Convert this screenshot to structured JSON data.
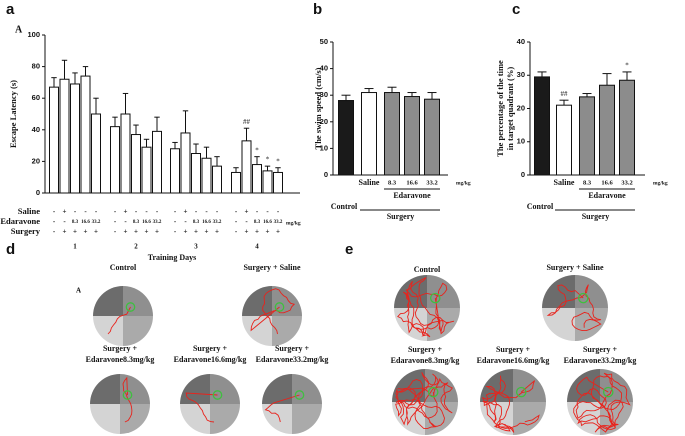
{
  "chart_data": [
    {
      "type": "grouped_bar",
      "panel_label": "a",
      "sub_label": "A",
      "ylabel": "Escape Latency (s)",
      "xlabel": "Training Days",
      "categories": [
        "1",
        "2",
        "3",
        "4"
      ],
      "ylim": [
        0,
        100
      ],
      "yticks": [
        0,
        20,
        40,
        60,
        80,
        100
      ],
      "condition_labels": [
        "Saline",
        "Edaravone",
        "Surgery"
      ],
      "unit": "mg/kg",
      "series": [
        {
          "color": "#ffffff",
          "conditions": [
            "-",
            "-",
            "-"
          ],
          "values": [
            67,
            42,
            28,
            13
          ],
          "errors": [
            6,
            6,
            4,
            3
          ],
          "annotations": [
            null,
            null,
            null,
            null
          ]
        },
        {
          "color": "#ffffff",
          "conditions": [
            "+",
            "-",
            "+"
          ],
          "values": [
            72,
            50,
            38,
            33
          ],
          "errors": [
            12,
            13,
            14,
            8
          ],
          "annotations": [
            null,
            null,
            null,
            "##"
          ]
        },
        {
          "color": "#ffffff",
          "conditions": [
            "-",
            "8.3",
            "+"
          ],
          "values": [
            69,
            37,
            25,
            18
          ],
          "errors": [
            7,
            6,
            6,
            5
          ],
          "annotations": [
            null,
            null,
            null,
            "*"
          ]
        },
        {
          "color": "#ffffff",
          "conditions": [
            "-",
            "16.6",
            "+"
          ],
          "values": [
            74,
            29,
            22,
            14
          ],
          "errors": [
            6,
            5,
            7,
            3
          ],
          "annotations": [
            null,
            null,
            null,
            "*"
          ]
        },
        {
          "color": "#ffffff",
          "conditions": [
            "-",
            "33.2",
            "+"
          ],
          "values": [
            50,
            39,
            17,
            13
          ],
          "errors": [
            10,
            9,
            6,
            3
          ],
          "annotations": [
            null,
            null,
            null,
            "*"
          ]
        }
      ]
    },
    {
      "type": "bar",
      "panel_label": "b",
      "ylabel": [
        "The swim speed (cm/s)"
      ],
      "categories": [
        "Control",
        "Saline",
        "8.3",
        "16.6",
        "33.2"
      ],
      "colors": [
        "#1a1a1a",
        "#ffffff",
        "#8c8c8c",
        "#8c8c8c",
        "#8c8c8c"
      ],
      "values": [
        28,
        31,
        31,
        29.5,
        28.5
      ],
      "errors": [
        2,
        1.5,
        2,
        1.5,
        2.5
      ],
      "annotations": [
        null,
        null,
        null,
        null,
        null
      ],
      "ylim": [
        0,
        50
      ],
      "yticks": [
        0,
        10,
        20,
        30,
        40,
        50
      ],
      "unit": "mg/kg",
      "group_labels": [
        "Edaravone",
        "Surgery"
      ]
    },
    {
      "type": "bar",
      "panel_label": "c",
      "ylabel": [
        "The percentage of the time",
        "in target quadrant (%)"
      ],
      "categories": [
        "Control",
        "Saline",
        "8.3",
        "16.6",
        "33.2"
      ],
      "colors": [
        "#1a1a1a",
        "#ffffff",
        "#8c8c8c",
        "#8c8c8c",
        "#8c8c8c"
      ],
      "values": [
        29.5,
        21,
        23.5,
        27,
        28.5
      ],
      "errors": [
        1.5,
        1.5,
        1,
        3.5,
        2.5
      ],
      "annotations": [
        null,
        "##",
        null,
        null,
        "*"
      ],
      "ylim": [
        0,
        40
      ],
      "yticks": [
        0,
        10,
        20,
        30,
        40
      ],
      "unit": "mg/kg",
      "group_labels": [
        "Edaravone",
        "Surgery"
      ]
    }
  ],
  "trajectories": [
    {
      "panel_label": "d",
      "sub_label": "A",
      "groups": [
        {
          "label": [
            "Control"
          ]
        },
        {
          "label": [
            "Surgery + Saline"
          ]
        },
        {
          "label": [
            "Surgery +",
            "Edaravone8.3mg/kg"
          ]
        },
        {
          "label": [
            "Surgery +",
            "Edaravone16.6mg/kg"
          ]
        },
        {
          "label": [
            "Surgery +",
            "Edaravone33.2mg/kg"
          ]
        }
      ]
    },
    {
      "panel_label": "e",
      "groups": [
        {
          "label": [
            "Control"
          ]
        },
        {
          "label": [
            "Surgery + Saline"
          ]
        },
        {
          "label": [
            "Surgery +",
            "Edaravone8.3mg/kg"
          ]
        },
        {
          "label": [
            "Surgery +",
            "Edaravone16.6mg/kg"
          ]
        },
        {
          "label": [
            "Surgery +",
            "Edaravone33.2mg/kg"
          ]
        }
      ]
    }
  ]
}
